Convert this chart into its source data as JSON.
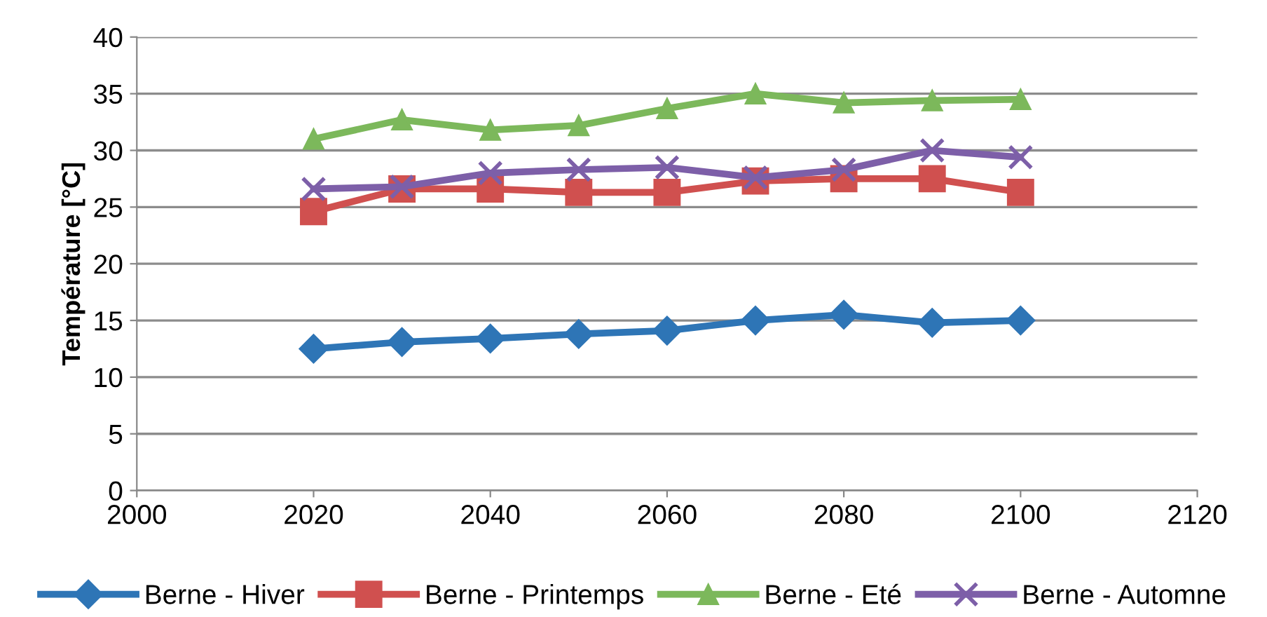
{
  "chart_data": {
    "type": "line",
    "ylabel": "Température [°C]",
    "x": [
      2020,
      2030,
      2040,
      2050,
      2060,
      2070,
      2080,
      2090,
      2100
    ],
    "series": [
      {
        "name": "Berne - Hiver",
        "color": "#2e75b6",
        "marker": "diamond",
        "values": [
          12.5,
          13.1,
          13.4,
          13.8,
          14.1,
          15.0,
          15.5,
          14.8,
          15.0
        ]
      },
      {
        "name": "Berne - Printemps",
        "color": "#d0504f",
        "marker": "square",
        "values": [
          24.6,
          26.6,
          26.6,
          26.3,
          26.3,
          27.3,
          27.5,
          27.5,
          26.3
        ]
      },
      {
        "name": "Berne - Eté",
        "color": "#7cb85b",
        "marker": "triangle",
        "values": [
          31.0,
          32.7,
          31.8,
          32.2,
          33.7,
          35.0,
          34.2,
          34.4,
          34.5
        ]
      },
      {
        "name": "Berne - Automne",
        "color": "#7d5fa8",
        "marker": "cross",
        "values": [
          26.6,
          26.8,
          28.0,
          28.3,
          28.5,
          27.6,
          28.3,
          30.0,
          29.4
        ]
      }
    ],
    "xlim": [
      2000,
      2120
    ],
    "xticks": [
      2000,
      2020,
      2040,
      2060,
      2080,
      2100,
      2120
    ],
    "ylim": [
      0,
      40
    ],
    "yticks": [
      0,
      5,
      10,
      15,
      20,
      25,
      30,
      35,
      40
    ],
    "grid": "y",
    "legend": "bottom"
  }
}
